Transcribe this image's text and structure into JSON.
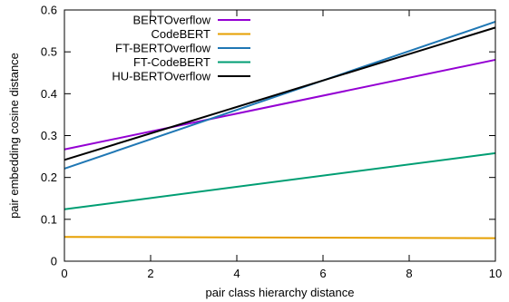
{
  "chart_data": {
    "type": "line",
    "xlabel": "pair class hierarchy distance",
    "ylabel": "pair embedding cosine distance",
    "xlim": [
      0,
      10
    ],
    "ylim": [
      0,
      0.6
    ],
    "xticks": [
      "0",
      "2",
      "4",
      "6",
      "8",
      "10"
    ],
    "yticks": [
      "0",
      "0.1",
      "0.2",
      "0.3",
      "0.4",
      "0.5",
      "0.6"
    ],
    "grid": false,
    "legend_position": "top-left",
    "series": [
      {
        "name": "BERTOverflow",
        "color": "#9400d3",
        "x": [
          0,
          10
        ],
        "y": [
          0.267,
          0.481
        ]
      },
      {
        "name": "CodeBERT",
        "color": "#e69f00",
        "x": [
          0,
          10
        ],
        "y": [
          0.058,
          0.055
        ]
      },
      {
        "name": "FT-BERTOverflow",
        "color": "#1f77b4",
        "x": [
          0,
          10
        ],
        "y": [
          0.221,
          0.572
        ]
      },
      {
        "name": "FT-CodeBERT",
        "color": "#009e73",
        "x": [
          0,
          10
        ],
        "y": [
          0.124,
          0.258
        ]
      },
      {
        "name": "HU-BERTOverflow",
        "color": "#000000",
        "x": [
          0,
          10
        ],
        "y": [
          0.242,
          0.558
        ]
      }
    ]
  }
}
